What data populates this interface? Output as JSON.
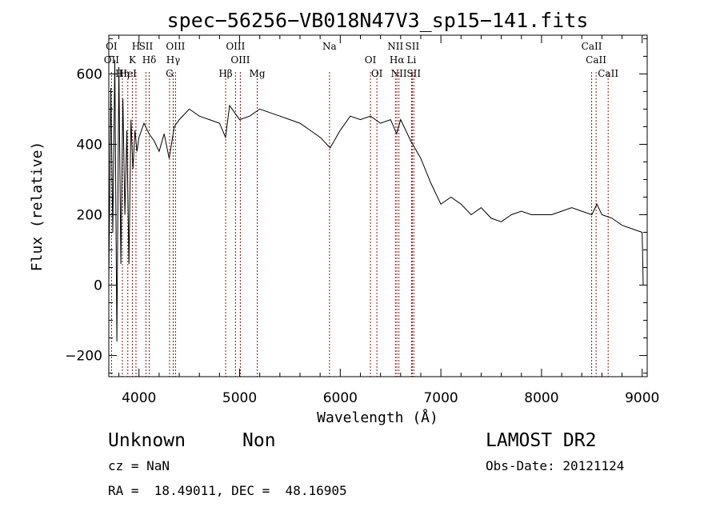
{
  "chart_data": {
    "type": "line",
    "title": "spec−56256−VB018N47V3_sp15−141.fits",
    "xlabel": "Wavelength (Å)",
    "ylabel": "Flux (relative)",
    "xlim": [
      3700,
      9050
    ],
    "ylim": [
      -260,
      710
    ],
    "x_ticks": [
      4000,
      5000,
      6000,
      7000,
      8000,
      9000
    ],
    "y_ticks": [
      -200,
      0,
      200,
      400,
      600
    ],
    "grid": false,
    "line_color": "#000000",
    "marker_color": "#8b1a1a",
    "spectrum": {
      "name": "",
      "x": [
        3700,
        3720,
        3740,
        3760,
        3780,
        3800,
        3820,
        3840,
        3860,
        3880,
        3900,
        3920,
        3940,
        3960,
        3980,
        4000,
        4050,
        4100,
        4150,
        4200,
        4250,
        4300,
        4350,
        4400,
        4500,
        4600,
        4700,
        4800,
        4860,
        4900,
        5000,
        5100,
        5200,
        5300,
        5400,
        5500,
        5600,
        5700,
        5800,
        5900,
        6000,
        6100,
        6200,
        6300,
        6400,
        6500,
        6560,
        6600,
        6700,
        6800,
        6900,
        7000,
        7100,
        7200,
        7300,
        7400,
        7500,
        7600,
        7700,
        7800,
        7900,
        8000,
        8100,
        8200,
        8300,
        8400,
        8500,
        8550,
        8600,
        8700,
        8800,
        8900,
        9000,
        9010
      ],
      "y": [
        10,
        560,
        150,
        640,
        -160,
        620,
        60,
        530,
        200,
        440,
        60,
        470,
        330,
        440,
        380,
        420,
        460,
        430,
        410,
        380,
        430,
        360,
        450,
        470,
        500,
        480,
        470,
        460,
        420,
        510,
        470,
        480,
        500,
        490,
        480,
        470,
        460,
        440,
        420,
        390,
        440,
        480,
        470,
        480,
        460,
        470,
        430,
        470,
        410,
        360,
        290,
        230,
        250,
        230,
        200,
        220,
        190,
        180,
        200,
        210,
        200,
        200,
        200,
        210,
        220,
        210,
        200,
        230,
        200,
        190,
        170,
        160,
        150,
        0
      ]
    },
    "lines": [
      {
        "label": "OI",
        "wavelength": 3727
      },
      {
        "label": "OII",
        "wavelength": 3727
      },
      {
        "label": "Hη",
        "wavelength": 3835
      },
      {
        "label": "H",
        "wavelength": 3970
      },
      {
        "label": "K",
        "wavelength": 3934
      },
      {
        "label": "HeI",
        "wavelength": 3889
      },
      {
        "label": "SII",
        "wavelength": 4069
      },
      {
        "label": "Hδ",
        "wavelength": 4102
      },
      {
        "label": "G",
        "wavelength": 4304
      },
      {
        "label": "OIII",
        "wavelength": 4363
      },
      {
        "label": "Hγ",
        "wavelength": 4340
      },
      {
        "label": "Hβ",
        "wavelength": 4861
      },
      {
        "label": "OIII",
        "wavelength": 4959
      },
      {
        "label": "OIII",
        "wavelength": 5007
      },
      {
        "label": "Mg",
        "wavelength": 5175
      },
      {
        "label": "Na",
        "wavelength": 5893
      },
      {
        "label": "OI",
        "wavelength": 6300
      },
      {
        "label": "OI",
        "wavelength": 6364
      },
      {
        "label": "NII",
        "wavelength": 6548
      },
      {
        "label": "Hα",
        "wavelength": 6563
      },
      {
        "label": "NII",
        "wavelength": 6583
      },
      {
        "label": "SII",
        "wavelength": 6716
      },
      {
        "label": "Li",
        "wavelength": 6708
      },
      {
        "label": "SII",
        "wavelength": 6731
      },
      {
        "label": "CaII",
        "wavelength": 8498
      },
      {
        "label": "CaII",
        "wavelength": 8542
      },
      {
        "label": "CaII",
        "wavelength": 8662
      }
    ]
  },
  "info": {
    "class": "Unknown",
    "subclass": "Non",
    "survey": "LAMOST DR2",
    "cz": "cz = NaN",
    "obs_date": "Obs-Date: 20121124",
    "coords": "RA =  18.49011, DEC =  48.16905"
  }
}
